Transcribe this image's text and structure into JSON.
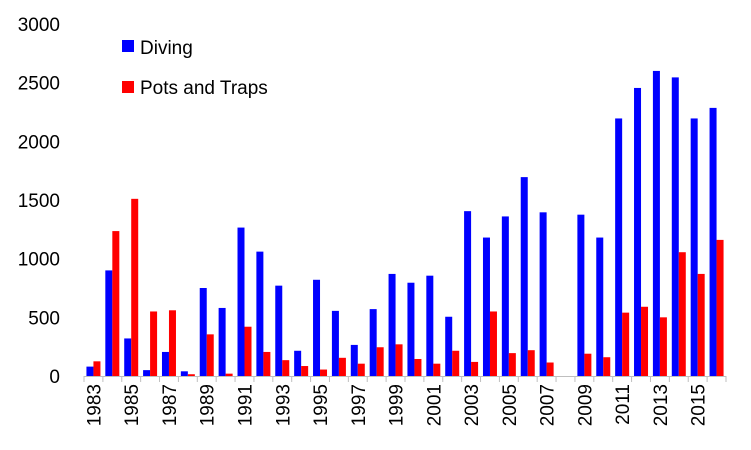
{
  "chart_data": {
    "type": "bar",
    "title": "",
    "xlabel": "",
    "ylabel": "",
    "ylim": [
      0,
      3000
    ],
    "yticks": [
      0,
      500,
      1000,
      1500,
      2000,
      2500,
      3000
    ],
    "legend_position": "top-left",
    "categories": [
      "1983",
      "1984",
      "1985",
      "1986",
      "1987",
      "1988",
      "1989",
      "1990",
      "1991",
      "1992",
      "1993",
      "1994",
      "1995",
      "1996",
      "1997",
      "1998",
      "1999",
      "2000",
      "2001",
      "2002",
      "2003",
      "2004",
      "2005",
      "2006",
      "2007",
      "2008",
      "2009",
      "2010",
      "2011",
      "2012",
      "2013",
      "2014",
      "2015",
      "2016"
    ],
    "x_tick_labels": [
      "1983",
      "1985",
      "1987",
      "1989",
      "1991",
      "1993",
      "1995",
      "1997",
      "1999",
      "2001",
      "2003",
      "2005",
      "2007",
      "2009",
      "2011",
      "2013",
      "2015"
    ],
    "series": [
      {
        "name": "Diving",
        "color": "#0000ff",
        "values": [
          80,
          900,
          320,
          50,
          205,
          40,
          750,
          580,
          1265,
          1060,
          770,
          215,
          820,
          555,
          265,
          570,
          870,
          795,
          855,
          505,
          1405,
          1180,
          1360,
          1695,
          1395,
          0,
          1375,
          1180,
          2195,
          2455,
          2600,
          2545,
          2195,
          2285
        ]
      },
      {
        "name": "Pots and Traps",
        "color": "#ff0000",
        "values": [
          125,
          1235,
          1510,
          550,
          560,
          15,
          355,
          20,
          420,
          205,
          135,
          85,
          55,
          155,
          105,
          245,
          270,
          145,
          105,
          215,
          120,
          550,
          195,
          220,
          115,
          0,
          190,
          160,
          540,
          590,
          500,
          1055,
          870,
          1160
        ]
      }
    ]
  }
}
